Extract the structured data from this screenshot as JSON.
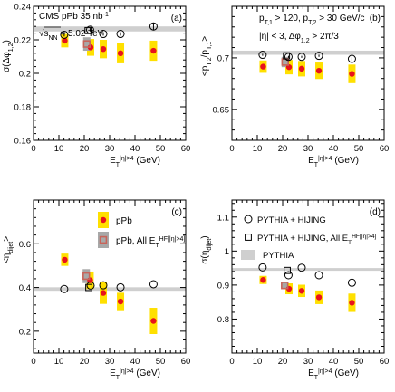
{
  "colors": {
    "band": "#cfcfcf",
    "syst_box": "#ffe000",
    "syst_box_gray": "#a8a8a8",
    "ppb_marker": "#e8121c",
    "all_et_marker": "#c8645a",
    "axis": "#000000"
  },
  "chart_data": [
    {
      "id": "a",
      "type": "scatter",
      "panel_label": "(a)",
      "annotations": [
        "CMS  pPb 35 nb",
        "-1",
        "√s",
        "NN",
        " = 5.02 TeV"
      ],
      "xlabel": "E",
      "xlabel_sup": "|η|>4",
      "xlabel_unit": " (GeV)",
      "ylabel": "σ(Δφ",
      "ylabel_sub": "1,2",
      "ylabel_end": ")",
      "xlim": [
        0,
        60
      ],
      "ylim": [
        0.16,
        0.24
      ],
      "xticks": [
        0,
        10,
        20,
        30,
        40,
        50,
        60
      ],
      "yticks": [
        0.16,
        0.18,
        0.2,
        0.22,
        0.24
      ],
      "ytick_labels": [
        "0.16",
        "0.18",
        "0.2",
        "0.22",
        "0.24"
      ],
      "band": {
        "y": 0.2265,
        "half_width": 0.0015
      },
      "series": [
        {
          "name": "pPb",
          "marker": "circle-filled",
          "x": [
            12.3,
            22.5,
            27.5,
            34.3,
            47.3
          ],
          "y": [
            0.2195,
            0.2155,
            0.2145,
            0.212,
            0.2135
          ],
          "syst": [
            0.004,
            0.005,
            0.0055,
            0.006,
            0.006
          ]
        },
        {
          "name": "pPb, All E",
          "marker": "square",
          "x": [
            21.0
          ],
          "y": [
            0.2175
          ],
          "syst": [
            0.004
          ]
        },
        {
          "name": "PYTHIA + HIJING",
          "marker": "circle-open",
          "x": [
            12.1,
            22.3,
            27.5,
            34.3,
            47.3
          ],
          "y": [
            0.223,
            0.226,
            0.2235,
            0.2235,
            0.228
          ],
          "yerr": [
            0.001,
            0.001,
            0.001,
            0.001,
            0.002
          ]
        },
        {
          "name": "PYTHIA + HIJING, All E",
          "marker": "square-open",
          "x": [
            21.5
          ],
          "y": [
            0.2255
          ]
        }
      ]
    },
    {
      "id": "b",
      "type": "scatter",
      "panel_label": "(b)",
      "annotations": [
        "p",
        "T,1",
        " > 120, p",
        "T,2",
        " > 30 GeV/c",
        "|η| < 3, Δφ",
        "1,2",
        " > 2π/3"
      ],
      "xlabel": "E",
      "xlabel_sup": "|η|>4",
      "xlabel_unit": " (GeV)",
      "ylabel": "<p",
      "ylabel_sub": "T,2",
      "ylabel_mid": "/p",
      "ylabel_sub2": "T,1",
      "ylabel_end": ">",
      "xlim": [
        0,
        60
      ],
      "ylim": [
        0.62,
        0.75
      ],
      "xticks": [
        0,
        10,
        20,
        30,
        40,
        50,
        60
      ],
      "yticks": [
        0.65,
        0.7
      ],
      "ytick_labels": [
        "0.65",
        "0.7"
      ],
      "band": {
        "y": 0.705,
        "half_width": 0.002
      },
      "series": [
        {
          "name": "pPb",
          "marker": "circle-filled",
          "x": [
            12.3,
            22.5,
            27.5,
            34.3,
            47.3
          ],
          "y": [
            0.6915,
            0.691,
            0.6895,
            0.6875,
            0.6845
          ],
          "syst": [
            0.006,
            0.007,
            0.0075,
            0.008,
            0.009
          ]
        },
        {
          "name": "pPb, All E",
          "marker": "square",
          "x": [
            21.0
          ],
          "y": [
            0.696
          ],
          "syst": [
            0.005
          ]
        },
        {
          "name": "PYTHIA + HIJING",
          "marker": "circle-open",
          "x": [
            12.1,
            22.3,
            27.5,
            34.3,
            47.3
          ],
          "y": [
            0.703,
            0.701,
            0.701,
            0.702,
            0.699
          ],
          "yerr": [
            0.001,
            0.001,
            0.001,
            0.001,
            0.002
          ]
        },
        {
          "name": "PYTHIA + HIJING, All E",
          "marker": "square-open",
          "x": [
            21.5
          ],
          "y": [
            0.702
          ]
        }
      ]
    },
    {
      "id": "c",
      "type": "scatter",
      "panel_label": "(c)",
      "legend": [
        {
          "label": "pPb",
          "marker": "circle-filled"
        },
        {
          "label": "pPb, All E",
          "label_sup": "HF[|η|>4]",
          "marker": "square"
        }
      ],
      "xlabel": "E",
      "xlabel_sup": "|η|>4",
      "xlabel_unit": " (GeV)",
      "ylabel": "<η",
      "ylabel_sub": "dijet",
      "ylabel_end": ">",
      "xlim": [
        0,
        60
      ],
      "ylim": [
        0.1,
        0.8
      ],
      "xticks": [
        0,
        10,
        20,
        30,
        40,
        50,
        60
      ],
      "yticks": [
        0.2,
        0.4,
        0.6
      ],
      "ytick_labels": [
        "0.2",
        "0.4",
        "0.6"
      ],
      "band": {
        "y": 0.393,
        "half_width": 0.008
      },
      "series": [
        {
          "name": "pPb",
          "marker": "circle-filled",
          "x": [
            12.3,
            22.3,
            27.5,
            34.3,
            47.3
          ],
          "y": [
            0.527,
            0.433,
            0.375,
            0.336,
            0.247
          ],
          "syst": [
            0.028,
            0.04,
            0.05,
            0.04,
            0.06
          ]
        },
        {
          "name": "pPb, All E",
          "marker": "square",
          "x": [
            20.8
          ],
          "y": [
            0.452
          ],
          "syst": [
            0.032
          ]
        },
        {
          "name": "PYTHIA + HIJING",
          "marker": "circle-open",
          "x": [
            12.1,
            22.5,
            27.5,
            34.3,
            47.3
          ],
          "y": [
            0.393,
            0.409,
            0.41,
            0.401,
            0.415
          ]
        },
        {
          "name": "PYTHIA + HIJING, All E",
          "marker": "square-open",
          "x": [
            21.8
          ],
          "y": [
            0.4
          ]
        }
      ]
    },
    {
      "id": "d",
      "type": "scatter",
      "panel_label": "(d)",
      "legend": [
        {
          "label": "PYTHIA + HIJING",
          "marker": "circle-open"
        },
        {
          "label": "PYTHIA + HIJING, All E",
          "label_sup": "HF[|η|>4]",
          "marker": "square-open"
        },
        {
          "label": "PYTHIA",
          "marker": "band"
        }
      ],
      "xlabel": "E",
      "xlabel_sup": "|η|>4",
      "xlabel_unit": " (GeV)",
      "ylabel": "σ(η",
      "ylabel_sub": "dijet",
      "ylabel_end": ")",
      "xlim": [
        0,
        60
      ],
      "ylim": [
        0.7,
        1.15
      ],
      "xticks": [
        0,
        10,
        20,
        30,
        40,
        50,
        60
      ],
      "yticks": [
        0.8,
        0.9,
        1.0,
        1.1
      ],
      "ytick_labels": [
        "0.8",
        "0.9",
        "1",
        "1.1"
      ],
      "band": {
        "y": 0.946,
        "half_width": 0.004
      },
      "series": [
        {
          "name": "pPb",
          "marker": "circle-filled",
          "x": [
            12.3,
            22.5,
            27.5,
            34.3,
            47.3
          ],
          "y": [
            0.915,
            0.889,
            0.883,
            0.864,
            0.848
          ],
          "syst": [
            0.012,
            0.016,
            0.018,
            0.02,
            0.027
          ]
        },
        {
          "name": "pPb, All E",
          "marker": "square",
          "x": [
            20.8
          ],
          "y": [
            0.899
          ],
          "syst": [
            0.008
          ]
        },
        {
          "name": "PYTHIA + HIJING",
          "marker": "circle-open",
          "x": [
            12.1,
            22.3,
            27.5,
            34.3,
            47.3
          ],
          "y": [
            0.952,
            0.929,
            0.951,
            0.929,
            0.907
          ]
        },
        {
          "name": "PYTHIA + HIJING, All E",
          "marker": "square-open",
          "x": [
            21.8
          ],
          "y": [
            0.943
          ]
        }
      ]
    }
  ]
}
